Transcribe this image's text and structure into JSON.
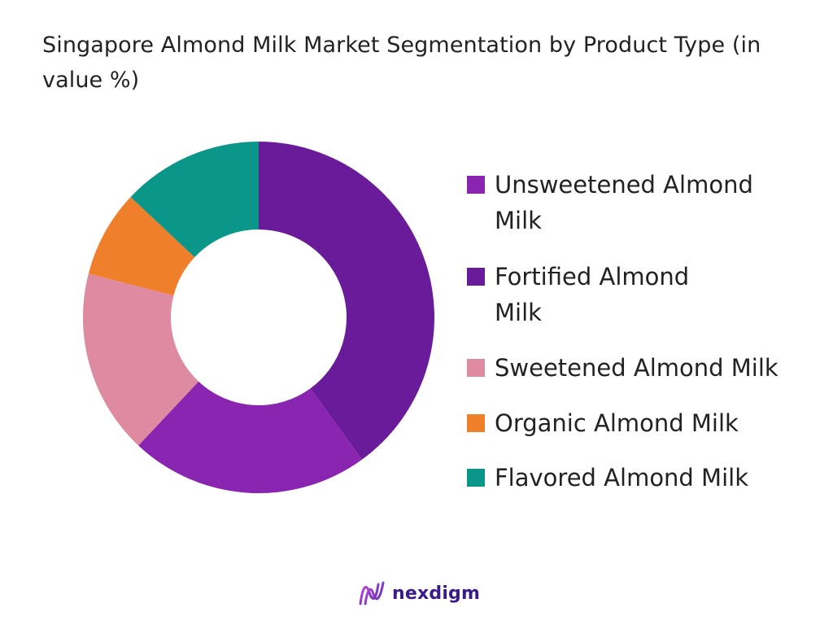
{
  "chart_data": {
    "type": "pie",
    "title": "Singapore Almond Milk Market Segmentation by Product Type (in value %)",
    "categories": [
      "Unsweetened Almond Milk",
      "Fortified Almond Milk",
      "Sweetened Almond Milk",
      "Organic Almond Milk",
      "Flavored Almond Milk"
    ],
    "values": [
      22,
      40,
      17,
      8,
      13
    ],
    "colors": [
      "#8a25b1",
      "#6a1b9a",
      "#de8aa0",
      "#f07f2b",
      "#0a9688"
    ],
    "drawing_order": [
      "Fortified Almond Milk",
      "Unsweetened Almond Milk",
      "Sweetened Almond Milk",
      "Organic Almond Milk",
      "Flavored Almond Milk"
    ],
    "legend_position": "right",
    "hole": "donut"
  },
  "legend": {
    "items": [
      {
        "label": "Unsweetened Almond Milk",
        "color": "#8a25b1"
      },
      {
        "label": "Fortified Almond Milk",
        "color": "#6a1b9a"
      },
      {
        "label": "Sweetened Almond Milk",
        "color": "#de8aa0"
      },
      {
        "label": "Organic Almond Milk",
        "color": "#f07f2b"
      },
      {
        "label": "Flavored Almond Milk",
        "color": "#0a9688"
      }
    ]
  },
  "brand": {
    "name": "nexdigm",
    "icon": "nexdigm-logo-icon"
  }
}
